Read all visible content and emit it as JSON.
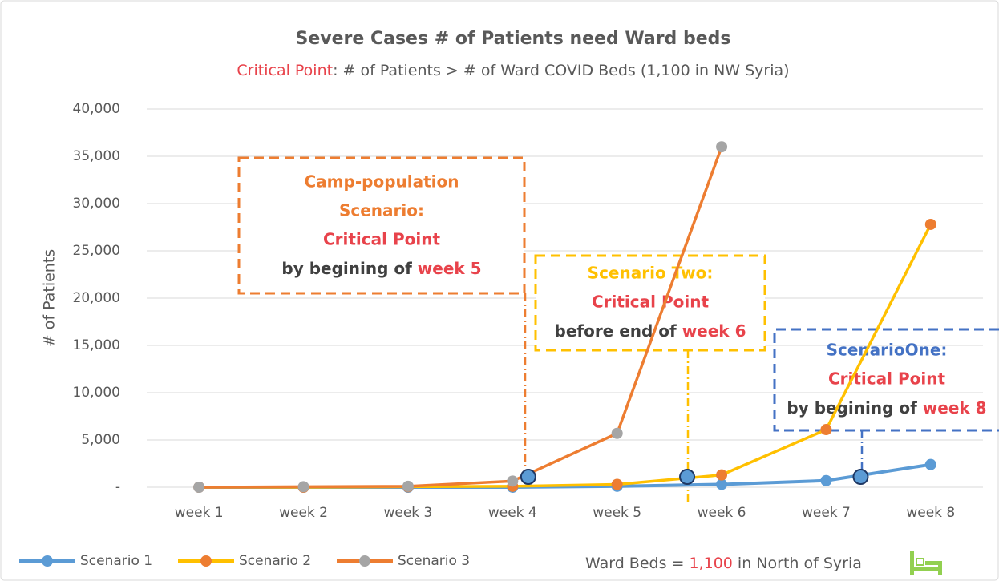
{
  "chart_data": {
    "type": "line",
    "title": "Severe Cases   # of Patients need Ward beds",
    "subtitle_parts": [
      {
        "text": "Critical Point",
        "color": "#e8434b"
      },
      {
        "text": ": # of Patients  > # of Ward COVID Beds (1,100 in NW Syria)",
        "color": "#595959"
      }
    ],
    "ylabel": "# of Patients",
    "categories": [
      "week 1",
      "week 2",
      "week 3",
      "week 4",
      "week 5",
      "week 6",
      "week 7",
      "week 8"
    ],
    "series": [
      {
        "name": "Scenario 1",
        "color": "#5b9bd5",
        "marker_color": "#5b9bd5",
        "values": [
          0,
          0,
          0,
          0,
          100,
          300,
          700,
          2400
        ]
      },
      {
        "name": "Scenario 2",
        "color": "#ffc000",
        "marker_color": "#ed7d31",
        "values": [
          0,
          0,
          50,
          100,
          300,
          1300,
          6100,
          27800
        ]
      },
      {
        "name": "Scenario 3",
        "color": "#ed7d31",
        "marker_color": "#a5a5a5",
        "values": [
          0,
          50,
          100,
          650,
          5700,
          36000,
          null,
          null
        ]
      }
    ],
    "critical_points": [
      {
        "x": 4.15,
        "y": 1100
      },
      {
        "x": 5.67,
        "y": 1100
      },
      {
        "x": 7.33,
        "y": 1100
      }
    ],
    "ylim": [
      0,
      40000
    ],
    "yticks": [
      {
        "value": 0,
        "label": "-"
      },
      {
        "value": 5000,
        "label": "5,000"
      },
      {
        "value": 10000,
        "label": "10,000"
      },
      {
        "value": 15000,
        "label": "15,000"
      },
      {
        "value": 20000,
        "label": "20,000"
      },
      {
        "value": 25000,
        "label": "25,000"
      },
      {
        "value": 30000,
        "label": "30,000"
      },
      {
        "value": 35000,
        "label": "35,000"
      },
      {
        "value": 40000,
        "label": "40,000"
      }
    ],
    "grid": true,
    "legend": "bottom-left",
    "annotations": [
      {
        "title_lines": [
          "Camp-population",
          "Scenario:"
        ],
        "title_color": "#ed7d31",
        "critical": "Critical Point",
        "note": "by begining of ",
        "week": "week 5"
      },
      {
        "title_lines": [
          "Scenario Two:"
        ],
        "title_color": "#ffc000",
        "critical": "Critical Point",
        "note": "before end of ",
        "week": "week 6"
      },
      {
        "title_lines": [
          "ScenarioOne:"
        ],
        "title_color": "#4472c4",
        "critical": "Critical Point",
        "note": "by begining of ",
        "week": "week 8"
      }
    ],
    "footnote_parts": [
      {
        "text": "Ward Beds = ",
        "color": "#595959"
      },
      {
        "text": "1,100",
        "color": "#e8434b"
      },
      {
        "text": "  in North of Syria",
        "color": "#595959"
      }
    ]
  }
}
